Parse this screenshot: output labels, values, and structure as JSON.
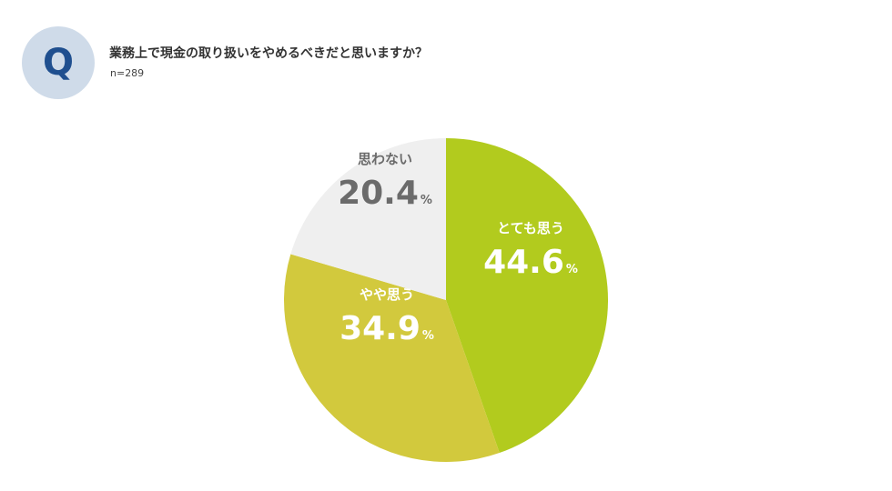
{
  "header": {
    "q_label": "Q",
    "question": "業務上で現金の取り扱いをやめるべきだと思いますか？",
    "sample": "n=289"
  },
  "colors": {
    "badge_bg": "#cfdbe9",
    "badge_text": "#1f4f8f",
    "slice_1": "#b2cb1e",
    "slice_2": "#d2c93d",
    "slice_3": "#efefef",
    "label_light": "#ffffff",
    "label_dark": "#6b6b6b"
  },
  "chart_data": {
    "type": "pie",
    "title": "業務上で現金の取り扱いをやめるべきだと思いますか？",
    "subtitle": "n=289",
    "start": "12-o'clock",
    "direction": "clockwise",
    "slices": [
      {
        "label": "とても思う",
        "value": 44.6,
        "display": "44.6",
        "unit": "%",
        "color": "#b2cb1e",
        "label_color": "#ffffff"
      },
      {
        "label": "やや思う",
        "value": 34.9,
        "display": "34.9",
        "unit": "%",
        "color": "#d2c93d",
        "label_color": "#ffffff"
      },
      {
        "label": "思わない",
        "value": 20.4,
        "display": "20.4",
        "unit": "%",
        "color": "#efefef",
        "label_color": "#6b6b6b"
      }
    ]
  }
}
